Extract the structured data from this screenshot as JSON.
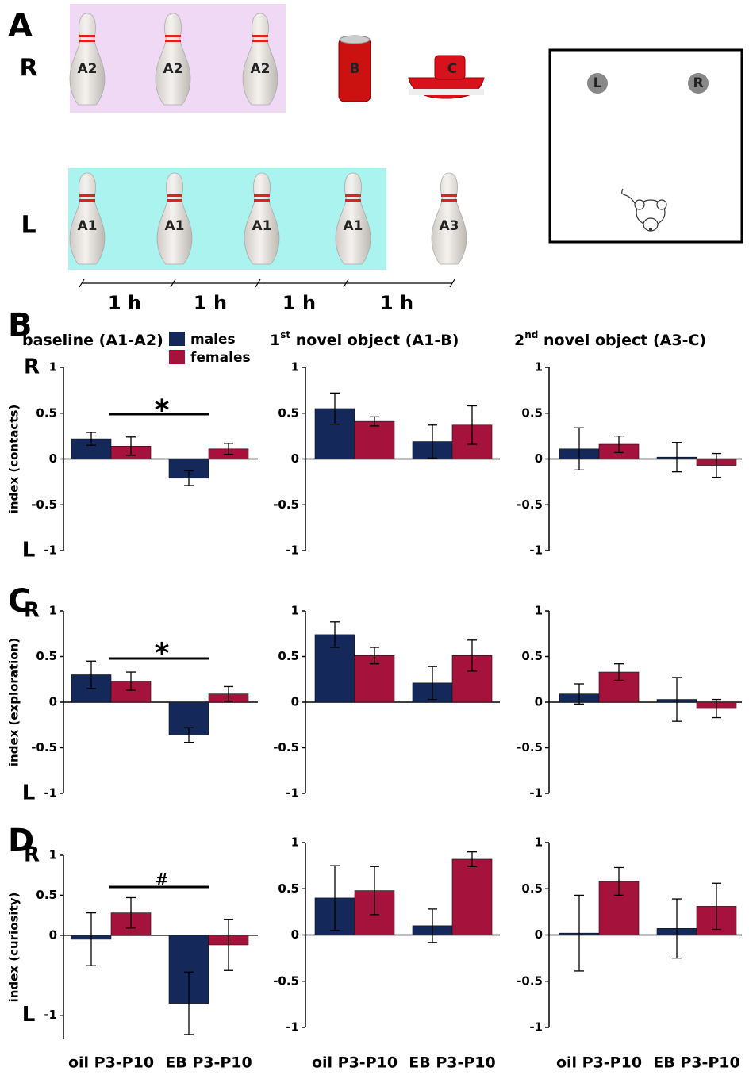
{
  "panel_labels": [
    "A",
    "B",
    "C",
    "D"
  ],
  "panel_a": {
    "rows": [
      {
        "label": "R",
        "objects": [
          "A2",
          "A2",
          "A2",
          "B",
          "C"
        ]
      },
      {
        "label": "L",
        "objects": [
          "A1",
          "A1",
          "A1",
          "A1",
          "A3"
        ]
      }
    ],
    "arena": [
      "L",
      "R"
    ],
    "intervals": [
      "1 h",
      "1 h",
      "1 h",
      "1 h"
    ]
  },
  "chart_data": [
    {
      "type": "bar",
      "title": [
        "baseline (A1-A2)"
      ],
      "y_label": "index (contacts)",
      "top_label": "R",
      "bottom_label": "L",
      "categories": [
        null,
        null
      ],
      "annotation": "*",
      "series": [
        {
          "name": "males",
          "color": "#14285a",
          "values": [
            0.22,
            -0.21
          ],
          "errors": [
            0.07,
            0.08
          ]
        },
        {
          "name": "females",
          "color": "#a5123c",
          "values": [
            0.14,
            0.11
          ],
          "errors": [
            0.1,
            0.06
          ]
        }
      ],
      "ylim": [
        -1,
        1
      ],
      "yticks": [
        1,
        0.5,
        0,
        -0.5,
        -1
      ]
    },
    {
      "type": "bar",
      "title": [
        "1",
        "st",
        " novel object (A1-B)"
      ],
      "categories": [
        null,
        null
      ],
      "series": [
        {
          "color": "#14285a",
          "values": [
            0.55,
            0.19
          ],
          "errors": [
            0.17,
            0.18
          ]
        },
        {
          "color": "#a5123c",
          "values": [
            0.41,
            0.37
          ],
          "errors": [
            0.05,
            0.21
          ]
        }
      ],
      "ylim": [
        -1,
        1
      ],
      "yticks": [
        1,
        0.5,
        0,
        -0.5,
        -1
      ]
    },
    {
      "type": "bar",
      "title": [
        "2",
        "nd",
        " novel object (A3-C)"
      ],
      "categories": [
        null,
        null
      ],
      "series": [
        {
          "color": "#14285a",
          "values": [
            0.11,
            0.02
          ],
          "errors": [
            0.23,
            0.16
          ]
        },
        {
          "color": "#a5123c",
          "values": [
            0.16,
            -0.07
          ],
          "errors": [
            0.09,
            0.13
          ]
        }
      ],
      "ylim": [
        -1,
        1
      ],
      "yticks": [
        1,
        0.5,
        0,
        -0.5,
        -1
      ]
    },
    {
      "type": "bar",
      "y_label": "index (exploration)",
      "top_label": "R",
      "bottom_label": "L",
      "categories": [
        null,
        null
      ],
      "annotation": "*",
      "series": [
        {
          "color": "#14285a",
          "values": [
            0.3,
            -0.36
          ],
          "errors": [
            0.15,
            0.08
          ]
        },
        {
          "color": "#a5123c",
          "values": [
            0.23,
            0.09
          ],
          "errors": [
            0.1,
            0.08
          ]
        }
      ],
      "ylim": [
        -1,
        1
      ],
      "yticks": [
        1,
        0.5,
        0,
        -0.5,
        -1
      ]
    },
    {
      "type": "bar",
      "categories": [
        null,
        null
      ],
      "series": [
        {
          "color": "#14285a",
          "values": [
            0.74,
            0.21
          ],
          "errors": [
            0.14,
            0.18
          ]
        },
        {
          "color": "#a5123c",
          "values": [
            0.51,
            0.51
          ],
          "errors": [
            0.09,
            0.17
          ]
        }
      ],
      "ylim": [
        -1,
        1
      ],
      "yticks": [
        1,
        0.5,
        0,
        -0.5,
        -1
      ]
    },
    {
      "type": "bar",
      "categories": [
        null,
        null
      ],
      "series": [
        {
          "color": "#14285a",
          "values": [
            0.09,
            0.03
          ],
          "errors": [
            0.11,
            0.24
          ]
        },
        {
          "color": "#a5123c",
          "values": [
            0.33,
            -0.07
          ],
          "errors": [
            0.09,
            0.1
          ]
        }
      ],
      "ylim": [
        -1,
        1
      ],
      "yticks": [
        1,
        0.5,
        0,
        -0.5,
        -1
      ]
    },
    {
      "type": "bar",
      "y_label": "index (curiosity)",
      "top_label": "R",
      "bottom_label": "L",
      "categories": [
        "oil P3-P10",
        "EB P3-P10"
      ],
      "annotation": "#",
      "series": [
        {
          "color": "#14285a",
          "values": [
            -0.05,
            -0.85
          ],
          "errors": [
            0.33,
            0.39
          ]
        },
        {
          "color": "#a5123c",
          "values": [
            0.28,
            -0.12
          ],
          "errors": [
            0.19,
            0.32
          ]
        }
      ],
      "ylim": [
        -1.3,
        1
      ],
      "yticks": [
        1,
        0.5,
        0,
        -1
      ]
    },
    {
      "type": "bar",
      "categories": [
        "oil P3-P10",
        "EB P3-P10"
      ],
      "series": [
        {
          "color": "#14285a",
          "values": [
            0.4,
            0.1
          ],
          "errors": [
            0.35,
            0.18
          ]
        },
        {
          "color": "#a5123c",
          "values": [
            0.48,
            0.82
          ],
          "errors": [
            0.26,
            0.08
          ]
        }
      ],
      "ylim": [
        -1,
        1
      ],
      "yticks": [
        1,
        0.5,
        0,
        -0.5,
        -1
      ]
    },
    {
      "type": "bar",
      "categories": [
        "oil P3-P10",
        "EB P3-P10"
      ],
      "series": [
        {
          "color": "#14285a",
          "values": [
            0.02,
            0.07
          ],
          "errors": [
            0.41,
            0.32
          ]
        },
        {
          "color": "#a5123c",
          "values": [
            0.58,
            0.31
          ],
          "errors": [
            0.15,
            0.25
          ]
        }
      ],
      "ylim": [
        -1,
        1
      ],
      "yticks": [
        1,
        0.5,
        0,
        -0.5,
        -1
      ]
    }
  ]
}
